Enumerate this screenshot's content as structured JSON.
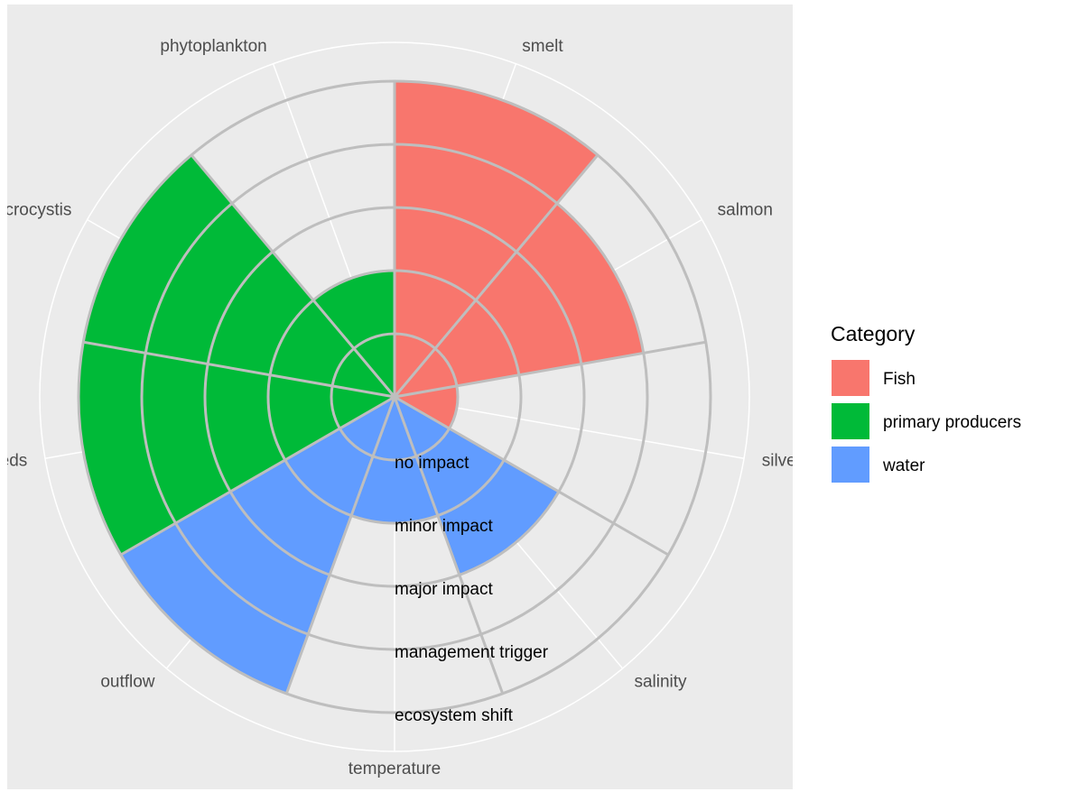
{
  "chart_data": {
    "type": "polar_bar",
    "categories": [
      "smelt",
      "salmon",
      "silver",
      "salinity",
      "temperature",
      "outflow",
      "weeds",
      "microcystis",
      "phytoplankton"
    ],
    "series": [
      {
        "name": "Fish",
        "color": "#F8766D",
        "values": [
          5,
          4,
          1,
          null,
          null,
          null,
          null,
          null,
          null
        ]
      },
      {
        "name": "primary producers",
        "color": "#00BA38",
        "values": [
          null,
          null,
          null,
          null,
          null,
          null,
          5,
          5,
          2
        ]
      },
      {
        "name": "water",
        "color": "#619CFF",
        "values": [
          null,
          null,
          null,
          3,
          2,
          5,
          null,
          null,
          null
        ]
      }
    ],
    "ylim": [
      0,
      5
    ],
    "yticks": [
      {
        "value": 1,
        "label": "no impact"
      },
      {
        "value": 2,
        "label": "minor impact"
      },
      {
        "value": 3,
        "label": "major impact"
      },
      {
        "value": 4,
        "label": "management trigger"
      },
      {
        "value": 5,
        "label": "ecosystem shift"
      }
    ],
    "legend_title": "Category",
    "legend_position": "right"
  }
}
